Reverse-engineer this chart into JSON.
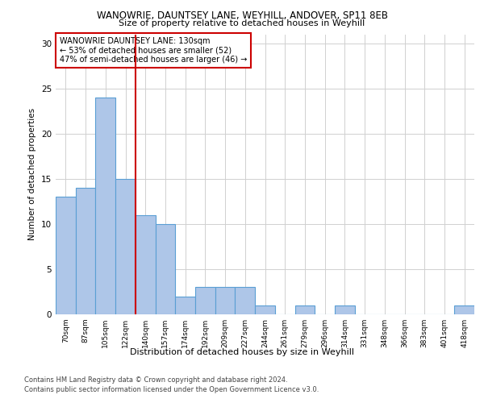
{
  "title_line1": "WANOWRIE, DAUNTSEY LANE, WEYHILL, ANDOVER, SP11 8EB",
  "title_line2": "Size of property relative to detached houses in Weyhill",
  "xlabel": "Distribution of detached houses by size in Weyhill",
  "ylabel": "Number of detached properties",
  "categories": [
    "70sqm",
    "87sqm",
    "105sqm",
    "122sqm",
    "140sqm",
    "157sqm",
    "174sqm",
    "192sqm",
    "209sqm",
    "227sqm",
    "244sqm",
    "261sqm",
    "279sqm",
    "296sqm",
    "314sqm",
    "331sqm",
    "348sqm",
    "366sqm",
    "383sqm",
    "401sqm",
    "418sqm"
  ],
  "values": [
    13,
    14,
    24,
    15,
    11,
    10,
    2,
    3,
    3,
    3,
    1,
    0,
    1,
    0,
    1,
    0,
    0,
    0,
    0,
    0,
    1
  ],
  "bar_color": "#aec6e8",
  "bar_edge_color": "#5a9fd4",
  "vline_x": 3.5,
  "vline_color": "#cc0000",
  "annotation_box_text": "WANOWRIE DAUNTSEY LANE: 130sqm\n← 53% of detached houses are smaller (52)\n47% of semi-detached houses are larger (46) →",
  "annotation_box_color": "#cc0000",
  "ylim": [
    0,
    31
  ],
  "yticks": [
    0,
    5,
    10,
    15,
    20,
    25,
    30
  ],
  "footer_line1": "Contains HM Land Registry data © Crown copyright and database right 2024.",
  "footer_line2": "Contains public sector information licensed under the Open Government Licence v3.0.",
  "bg_color": "#ffffff",
  "grid_color": "#d0d0d0"
}
